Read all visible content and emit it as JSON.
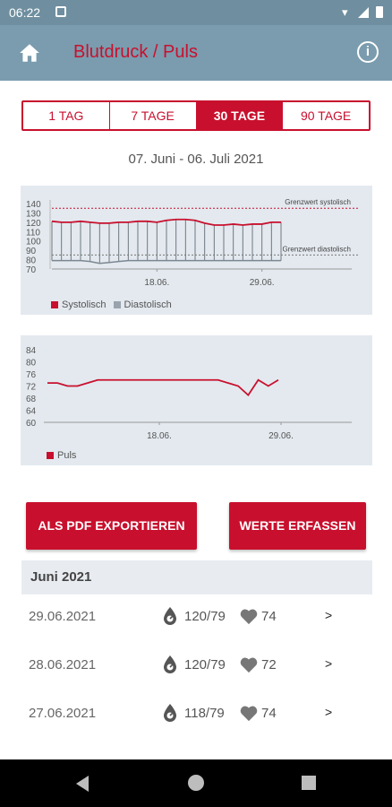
{
  "status_bar": {
    "time": "06:22"
  },
  "app_bar": {
    "title": "Blutdruck / Puls"
  },
  "tabs": [
    {
      "label": "1 TAG",
      "active": false
    },
    {
      "label": "7 TAGE",
      "active": false
    },
    {
      "label": "30 TAGE",
      "active": true
    },
    {
      "label": "90 TAGE",
      "active": false
    }
  ],
  "date_range": "07. Juni - 06. Juli 2021",
  "colors": {
    "accent": "#c8102e",
    "chart_bg": "#e3e9ef",
    "diastolic": "#9aa3ad"
  },
  "chart_data": [
    {
      "type": "bar",
      "yticks": [
        70,
        80,
        90,
        100,
        110,
        120,
        130,
        140
      ],
      "ylim": [
        70,
        140
      ],
      "xtick_labels": [
        "18.06.",
        "29.06."
      ],
      "threshold_systolic": {
        "label": "Grenzwert systolisch",
        "value": 135
      },
      "threshold_diastolic": {
        "label": "Grenzwert diastolisch",
        "value": 85
      },
      "series": [
        {
          "name": "Systolisch",
          "values": [
            121,
            120,
            120,
            121,
            120,
            119,
            119,
            120,
            120,
            121,
            121,
            120,
            122,
            123,
            123,
            122,
            119,
            117,
            117,
            118,
            117,
            118,
            118,
            120,
            120
          ]
        },
        {
          "name": "Diastolisch",
          "values": [
            79,
            79,
            79,
            79,
            78,
            76,
            77,
            78,
            79,
            79,
            79,
            79,
            79,
            79,
            79,
            79,
            79,
            79,
            79,
            79,
            79,
            79,
            79,
            79,
            79
          ]
        }
      ],
      "legend": [
        "Systolisch",
        "Diastolisch"
      ]
    },
    {
      "type": "line",
      "yticks": [
        60,
        64,
        68,
        72,
        76,
        80,
        84
      ],
      "ylim": [
        60,
        84
      ],
      "xtick_labels": [
        "18.06.",
        "29.06."
      ],
      "series": [
        {
          "name": "Puls",
          "values": [
            73,
            73,
            72,
            72,
            73,
            74,
            74,
            74,
            74,
            74,
            74,
            74,
            74,
            74,
            74,
            74,
            74,
            74,
            73,
            72,
            69,
            74,
            72,
            74
          ]
        }
      ],
      "legend": [
        "Puls"
      ]
    }
  ],
  "buttons": {
    "export": "ALS PDF EXPORTIEREN",
    "record": "WERTE ERFASSEN"
  },
  "month_header": "Juni 2021",
  "entries": [
    {
      "date": "29.06.2021",
      "bp": "120/79",
      "pulse": "74",
      "chevron": ">"
    },
    {
      "date": "28.06.2021",
      "bp": "120/79",
      "pulse": "72",
      "chevron": ">"
    },
    {
      "date": "27.06.2021",
      "bp": "118/79",
      "pulse": "74",
      "chevron": ">"
    }
  ]
}
